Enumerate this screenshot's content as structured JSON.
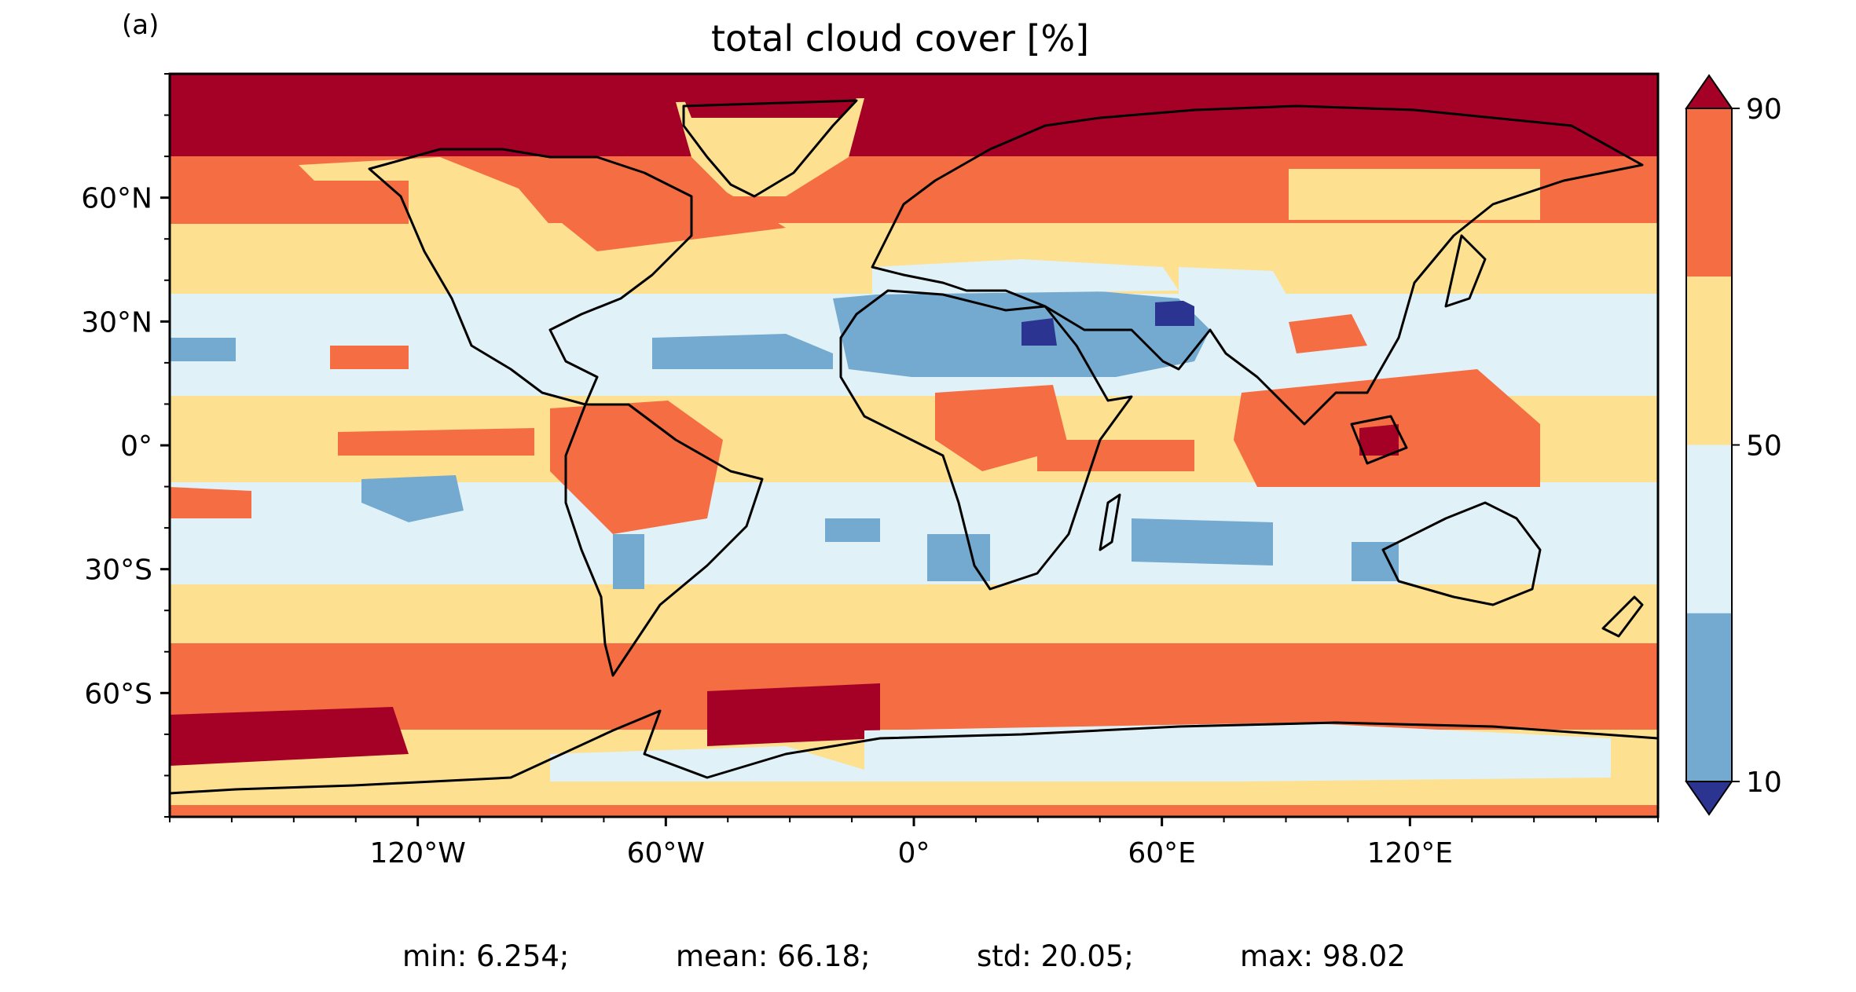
{
  "figure": {
    "panel_label": "(a)",
    "title": "total cloud cover [%]"
  },
  "map": {
    "projection": "PlateCarree",
    "lon_range": [
      -180,
      180
    ],
    "lat_range": [
      -90,
      90
    ],
    "lat_ticks": [
      {
        "value": 60,
        "label": "60°N"
      },
      {
        "value": 30,
        "label": "30°N"
      },
      {
        "value": 0,
        "label": "0°"
      },
      {
        "value": -30,
        "label": "30°S"
      },
      {
        "value": -60,
        "label": "60°S"
      }
    ],
    "lon_ticks": [
      {
        "value": -120,
        "label": "120°W"
      },
      {
        "value": -60,
        "label": "60°W"
      },
      {
        "value": 0,
        "label": "0°"
      },
      {
        "value": 60,
        "label": "60°E"
      },
      {
        "value": 120,
        "label": "120°E"
      }
    ],
    "coastlines": "black"
  },
  "colorbar": {
    "extend": "both",
    "bins": [
      {
        "range": "<10",
        "color": "#2b3591"
      },
      {
        "range": "10-30",
        "color": "#74a9d0"
      },
      {
        "range": "30-50",
        "color": "#e0f2f8"
      },
      {
        "range": "50-70",
        "color": "#fee091"
      },
      {
        "range": "70-90",
        "color": "#f46d43"
      },
      {
        "range": ">90",
        "color": "#a50026"
      }
    ],
    "tick_labels": [
      {
        "value": 90,
        "label": "90"
      },
      {
        "value": 50,
        "label": "50"
      },
      {
        "value": 10,
        "label": "10"
      }
    ]
  },
  "stats": {
    "min": "min: 6.254;",
    "mean": "mean: 66.18;",
    "std": "std: 20.05;",
    "max": "max: 98.02"
  }
}
